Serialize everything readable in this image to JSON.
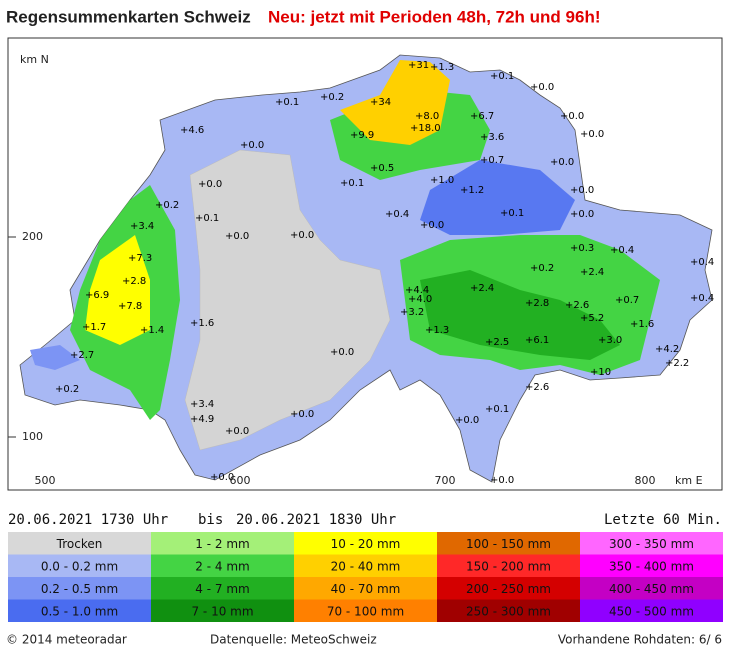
{
  "header": {
    "title": "Regensummenkarten Schweiz",
    "notice": "Neu: jetzt mit Perioden 48h, 72h und 96h!"
  },
  "map": {
    "y_axis_unit": "km N",
    "x_axis_unit": "km E",
    "y_labels": [
      "200",
      "100"
    ],
    "x_labels": [
      "500",
      "600",
      "700",
      "800"
    ],
    "stations": [
      "+31",
      "+1.3",
      "+0.1",
      "+0.0",
      "+0.2",
      "+34",
      "+0.1",
      "+8.0",
      "+6.7",
      "+0.0",
      "+4.6",
      "+9.9",
      "+18.0",
      "+3.6",
      "+0.0",
      "+0.0",
      "+0.7",
      "+0.0",
      "+0.5",
      "+1.0",
      "+0.0",
      "+0.1",
      "+1.2",
      "+0.0",
      "+3.4",
      "+0.2",
      "+0.1",
      "+0.0",
      "+0.0",
      "+0.4",
      "+0.0",
      "+0.1",
      "+0.0",
      "+7.3",
      "+0.3",
      "+0.4",
      "+0.4",
      "+2.8",
      "+4.4",
      "+2.4",
      "+0.2",
      "+2.4",
      "+6.9",
      "+7.8",
      "+4.0",
      "+2.8",
      "+2.6",
      "+0.7",
      "+0.4",
      "+1.7",
      "+1.4",
      "+1.6",
      "+3.2",
      "+5.2",
      "+1.6",
      "+1.3",
      "+2.5",
      "+6.1",
      "+3.0",
      "+4.2",
      "+2.7",
      "+0.0",
      "+10",
      "+2.2",
      "+0.2",
      "+2.6",
      "+3.4",
      "+0.0",
      "+4.9",
      "+0.1",
      "+0.0",
      "+0.0",
      "+0.0",
      "+0.0"
    ]
  },
  "period": {
    "from": "20.06.2021 1730 Uhr",
    "separator": "bis",
    "to": "20.06.2021 1830 Uhr",
    "window": "Letzte 60 Min."
  },
  "legend": [
    [
      {
        "label": "Trocken",
        "color": "#d8d8d8"
      },
      {
        "label": "0.0 - 0.2 mm",
        "color": "#a8b8f4"
      },
      {
        "label": "0.2 - 0.5 mm",
        "color": "#7c94f4"
      },
      {
        "label": "0.5 - 1.0 mm",
        "color": "#4a6cf0"
      }
    ],
    [
      {
        "label": "1 - 2 mm",
        "color": "#a4f078"
      },
      {
        "label": "2 - 4 mm",
        "color": "#44d444"
      },
      {
        "label": "4 - 7 mm",
        "color": "#22b022"
      },
      {
        "label": "7 - 10 mm",
        "color": "#109010"
      }
    ],
    [
      {
        "label": "10 - 20 mm",
        "color": "#ffff00"
      },
      {
        "label": "20 - 40 mm",
        "color": "#ffd000"
      },
      {
        "label": "40 - 70 mm",
        "color": "#ffa800"
      },
      {
        "label": "70 - 100 mm",
        "color": "#ff8000"
      }
    ],
    [
      {
        "label": "100 - 150 mm",
        "color": "#e06800"
      },
      {
        "label": "150 - 200 mm",
        "color": "#ff2828"
      },
      {
        "label": "200 - 250 mm",
        "color": "#d40000"
      },
      {
        "label": "250 - 300 mm",
        "color": "#a00000"
      }
    ],
    [
      {
        "label": "300 - 350 mm",
        "color": "#ff66ff"
      },
      {
        "label": "350 - 400 mm",
        "color": "#ff00ff"
      },
      {
        "label": "400 - 450 mm",
        "color": "#c400c4"
      },
      {
        "label": "450 - 500 mm",
        "color": "#9000ff"
      }
    ]
  ],
  "footer": {
    "copyright": "© 2014 meteoradar",
    "source": "Datenquelle: MeteoSchweiz",
    "raw_data": "Vorhandene Rohdaten:  6/ 6"
  }
}
